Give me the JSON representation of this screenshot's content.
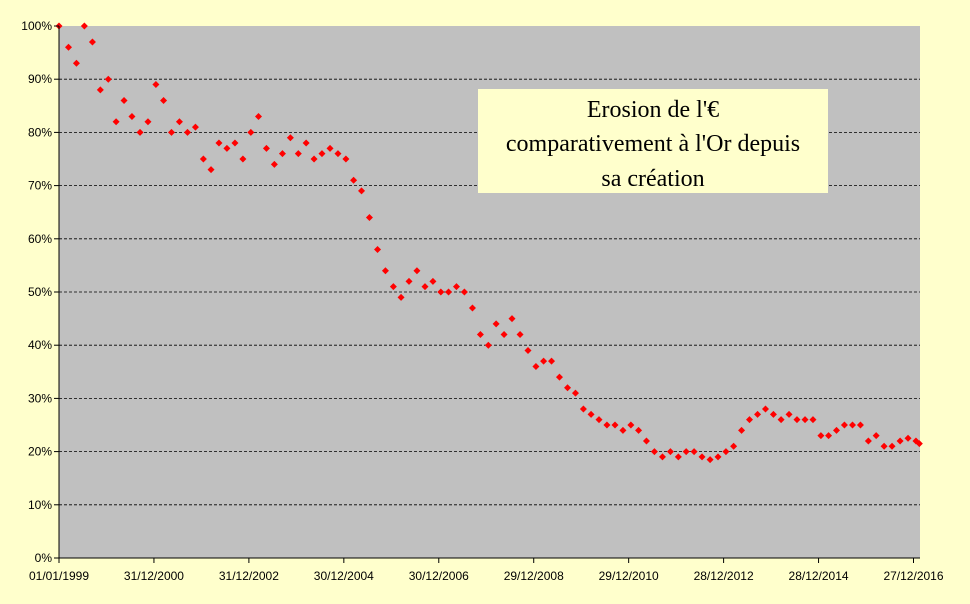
{
  "chart_data": {
    "type": "scatter",
    "title": [
      "Erosion de l'€",
      "comparativement à l'Or depuis",
      "sa création"
    ],
    "color": "#ff0000",
    "grid": true,
    "xlim": [
      "01/01/1999",
      "15/02/2017"
    ],
    "xticks": [
      "01/01/1999",
      "31/12/2000",
      "31/12/2002",
      "30/12/2004",
      "30/12/2006",
      "29/12/2008",
      "29/12/2010",
      "28/12/2012",
      "28/12/2014",
      "27/12/2016"
    ],
    "ylim": [
      0,
      100
    ],
    "yticks": [
      {
        "value": 0,
        "label": "0%"
      },
      {
        "value": 10,
        "label": "10%"
      },
      {
        "value": 20,
        "label": "20%"
      },
      {
        "value": 30,
        "label": "30%"
      },
      {
        "value": 40,
        "label": "40%"
      },
      {
        "value": 50,
        "label": "50%"
      },
      {
        "value": 60,
        "label": "60%"
      },
      {
        "value": 70,
        "label": "70%"
      },
      {
        "value": 80,
        "label": "80%"
      },
      {
        "value": 90,
        "label": "90%"
      },
      {
        "value": 100,
        "label": "100%"
      }
    ],
    "x": [
      "01/01/1999",
      "15/03/1999",
      "15/05/1999",
      "15/07/1999",
      "15/09/1999",
      "15/11/1999",
      "15/01/2000",
      "15/03/2000",
      "15/05/2000",
      "15/07/2000",
      "15/09/2000",
      "15/11/2000",
      "15/01/2001",
      "15/03/2001",
      "15/05/2001",
      "15/07/2001",
      "15/09/2001",
      "15/11/2001",
      "15/01/2002",
      "15/03/2002",
      "15/05/2002",
      "15/07/2002",
      "15/09/2002",
      "15/11/2002",
      "15/01/2003",
      "15/03/2003",
      "15/05/2003",
      "15/07/2003",
      "15/09/2003",
      "15/11/2003",
      "15/01/2004",
      "15/03/2004",
      "15/05/2004",
      "15/07/2004",
      "15/09/2004",
      "15/11/2004",
      "15/01/2005",
      "15/03/2005",
      "15/05/2005",
      "15/07/2005",
      "15/09/2005",
      "15/11/2005",
      "15/01/2006",
      "15/03/2006",
      "15/05/2006",
      "15/07/2006",
      "15/09/2006",
      "15/11/2006",
      "15/01/2007",
      "15/03/2007",
      "15/05/2007",
      "15/07/2007",
      "15/09/2007",
      "15/11/2007",
      "15/01/2008",
      "15/03/2008",
      "15/05/2008",
      "15/07/2008",
      "15/09/2008",
      "15/11/2008",
      "15/01/2009",
      "15/03/2009",
      "15/05/2009",
      "15/07/2009",
      "15/09/2009",
      "15/11/2009",
      "15/01/2010",
      "15/03/2010",
      "15/05/2010",
      "15/07/2010",
      "15/09/2010",
      "15/11/2010",
      "15/01/2011",
      "15/03/2011",
      "15/05/2011",
      "15/07/2011",
      "15/09/2011",
      "15/11/2011",
      "15/01/2012",
      "15/03/2012",
      "15/05/2012",
      "15/07/2012",
      "15/09/2012",
      "15/11/2012",
      "15/01/2013",
      "15/03/2013",
      "15/05/2013",
      "15/07/2013",
      "15/09/2013",
      "15/11/2013",
      "15/01/2014",
      "15/03/2014",
      "15/05/2014",
      "15/07/2014",
      "15/09/2014",
      "15/11/2014",
      "15/01/2015",
      "15/03/2015",
      "15/05/2015",
      "15/07/2015",
      "15/09/2015",
      "15/11/2015",
      "15/01/2016",
      "15/03/2016",
      "15/05/2016",
      "15/07/2016",
      "15/09/2016",
      "15/11/2016",
      "15/01/2017",
      "10/02/2017"
    ],
    "values": [
      100,
      96,
      93,
      100,
      97,
      88,
      90,
      82,
      86,
      83,
      80,
      82,
      89,
      86,
      80,
      82,
      80,
      81,
      75,
      73,
      78,
      77,
      78,
      75,
      80,
      83,
      77,
      74,
      76,
      79,
      76,
      78,
      75,
      76,
      77,
      76,
      75,
      71,
      69,
      64,
      58,
      54,
      51,
      49,
      52,
      54,
      51,
      52,
      50,
      50,
      51,
      50,
      47,
      42,
      40,
      44,
      42,
      45,
      42,
      39,
      36,
      37,
      37,
      34,
      32,
      31,
      28,
      27,
      26,
      25,
      25,
      24,
      25,
      24,
      22,
      20,
      19,
      20,
      19,
      20,
      20,
      19,
      18.5,
      19,
      20,
      21,
      24,
      26,
      27,
      28,
      27,
      26,
      27,
      26,
      26,
      26,
      23,
      23,
      24,
      25,
      25,
      25,
      22,
      23,
      21,
      21,
      22,
      22.5,
      22,
      21.5
    ]
  }
}
